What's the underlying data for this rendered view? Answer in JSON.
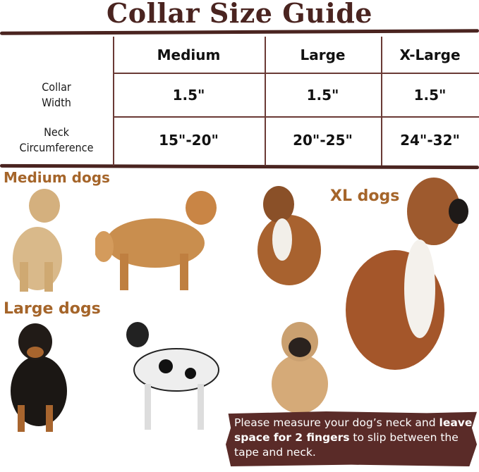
{
  "title": "Collar Size Guide",
  "table": {
    "columns": [
      "Medium",
      "Large",
      "X-Large"
    ],
    "rows": [
      {
        "label_line1": "Collar",
        "label_line2": "Width",
        "values": [
          "1.5\"",
          "1.5\"",
          "1.5\""
        ]
      },
      {
        "label_line1": "Neck",
        "label_line2": "Circumference",
        "values": [
          "15\"-20\"",
          "20\"-25\"",
          "24\"-32\""
        ]
      }
    ]
  },
  "groups": {
    "medium": "Medium dogs",
    "large": "Large dogs",
    "xl": "XL dogs"
  },
  "note": {
    "part1": "Please measure your dog’s neck and ",
    "bold": "leave space for 2 fingers",
    "part2": " to slip between the tape and neck."
  },
  "colors": {
    "brown": "#4a2420",
    "label_orange": "#a5652a",
    "note_bg": "#5a2b28"
  }
}
